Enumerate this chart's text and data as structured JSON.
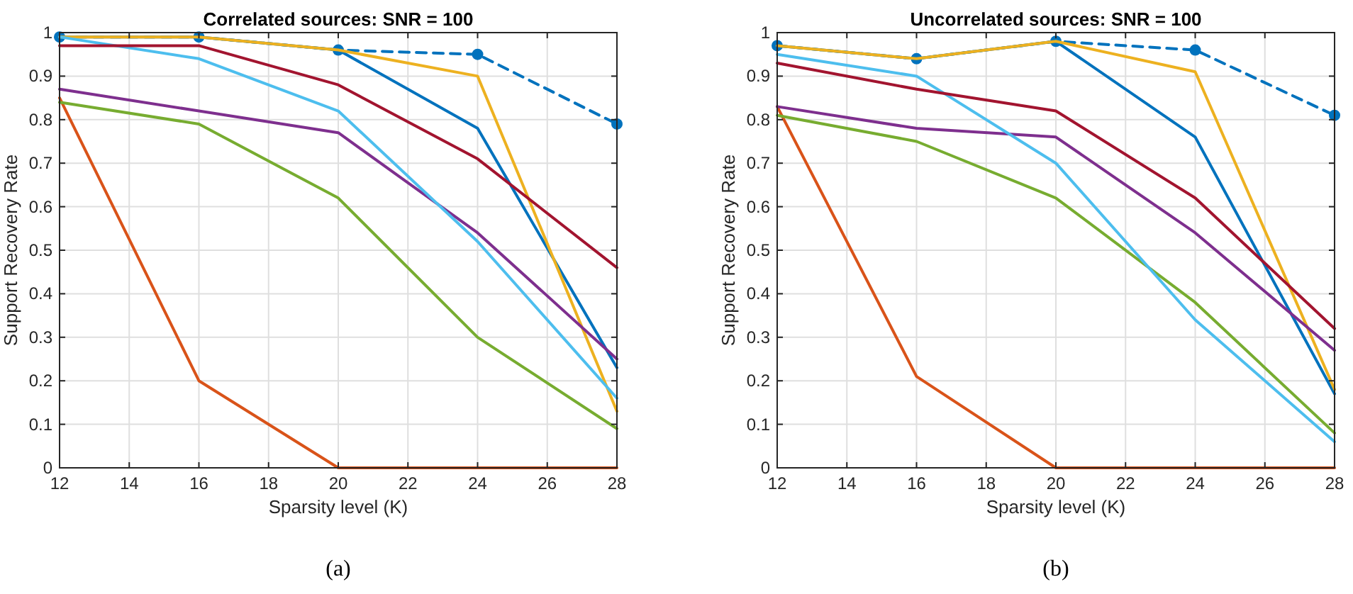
{
  "chart_data": [
    {
      "type": "line",
      "title": "Correlated sources: SNR = 100",
      "xlabel": "Sparsity level (K)",
      "ylabel": "Support Recovery Rate",
      "annotations": [
        "(a)"
      ],
      "x": [
        12,
        16,
        20,
        24,
        28
      ],
      "xlim": [
        12,
        28
      ],
      "xticks": [
        12,
        14,
        16,
        18,
        20,
        22,
        24,
        26,
        28
      ],
      "ylim": [
        0,
        1
      ],
      "yticks": [
        0,
        0.1,
        0.2,
        0.3,
        0.4,
        0.5,
        0.6,
        0.7,
        0.8,
        0.9,
        1
      ],
      "grid": true,
      "marker": "none",
      "line_style": "solid",
      "series": [
        {
          "color": "#0072bd",
          "values": [
            0.99,
            0.99,
            0.96,
            0.95,
            0.79
          ],
          "marker": "circle",
          "line_style": "dashed"
        },
        {
          "color": "#0072bd",
          "values": [
            0.99,
            0.99,
            0.96,
            0.78,
            0.23
          ]
        },
        {
          "color": "#d95319",
          "values": [
            0.85,
            0.2,
            0,
            0,
            0
          ]
        },
        {
          "color": "#edb120",
          "values": [
            0.99,
            0.99,
            0.96,
            0.9,
            0.13
          ]
        },
        {
          "color": "#7e2f8e",
          "values": [
            0.87,
            0.82,
            0.77,
            0.54,
            0.25
          ]
        },
        {
          "color": "#77ac30",
          "values": [
            0.84,
            0.79,
            0.62,
            0.3,
            0.09
          ]
        },
        {
          "color": "#4dbeee",
          "values": [
            0.99,
            0.94,
            0.82,
            0.52,
            0.16
          ]
        },
        {
          "color": "#a2142f",
          "values": [
            0.97,
            0.97,
            0.88,
            0.71,
            0.46
          ]
        }
      ]
    },
    {
      "type": "line",
      "title": "Uncorrelated sources: SNR = 100",
      "xlabel": "Sparsity level (K)",
      "ylabel": "Support Recovery Rate",
      "annotations": [
        "(b)"
      ],
      "x": [
        12,
        16,
        20,
        24,
        28
      ],
      "xlim": [
        12,
        28
      ],
      "xticks": [
        12,
        14,
        16,
        18,
        20,
        22,
        24,
        26,
        28
      ],
      "ylim": [
        0,
        1
      ],
      "yticks": [
        0,
        0.1,
        0.2,
        0.3,
        0.4,
        0.5,
        0.6,
        0.7,
        0.8,
        0.9,
        1
      ],
      "grid": true,
      "marker": "none",
      "line_style": "solid",
      "series": [
        {
          "color": "#0072bd",
          "values": [
            0.97,
            0.94,
            0.98,
            0.96,
            0.81
          ],
          "marker": "circle",
          "line_style": "dashed"
        },
        {
          "color": "#0072bd",
          "values": [
            0.97,
            0.94,
            0.98,
            0.76,
            0.17
          ]
        },
        {
          "color": "#d95319",
          "values": [
            0.83,
            0.21,
            0,
            0,
            0
          ]
        },
        {
          "color": "#edb120",
          "values": [
            0.97,
            0.94,
            0.98,
            0.91,
            0.18
          ]
        },
        {
          "color": "#7e2f8e",
          "values": [
            0.83,
            0.78,
            0.76,
            0.54,
            0.27
          ]
        },
        {
          "color": "#77ac30",
          "values": [
            0.81,
            0.75,
            0.62,
            0.38,
            0.08
          ]
        },
        {
          "color": "#4dbeee",
          "values": [
            0.95,
            0.9,
            0.7,
            0.34,
            0.06
          ]
        },
        {
          "color": "#a2142f",
          "values": [
            0.93,
            0.87,
            0.82,
            0.62,
            0.32
          ]
        }
      ]
    }
  ]
}
